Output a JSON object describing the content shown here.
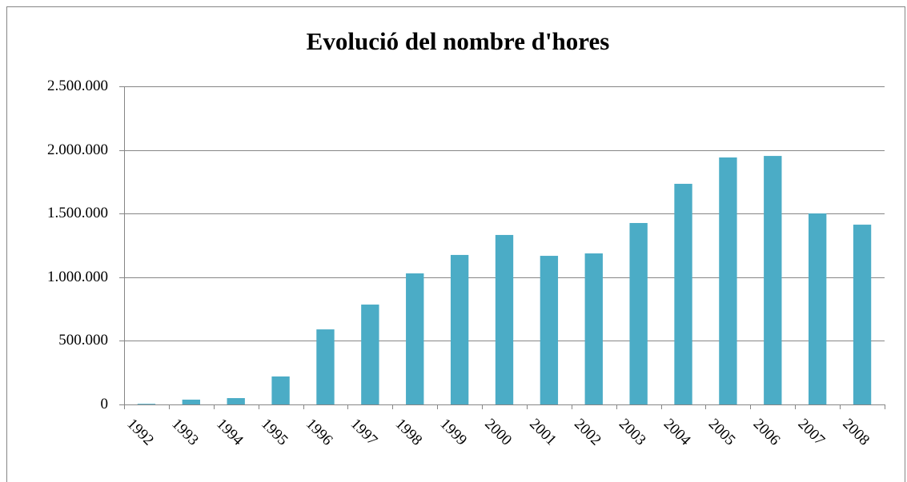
{
  "chart_data": {
    "type": "bar",
    "title": "Evolució del nombre d'hores",
    "categories": [
      "1992",
      "1993",
      "1994",
      "1995",
      "1996",
      "1997",
      "1998",
      "1999",
      "2000",
      "2001",
      "2002",
      "2003",
      "2004",
      "2005",
      "2006",
      "2007",
      "2008"
    ],
    "values": [
      5000,
      38000,
      50000,
      220000,
      590000,
      785000,
      1030000,
      1175000,
      1332000,
      1168000,
      1187000,
      1426000,
      1734000,
      1941000,
      1953000,
      1501000,
      1413000
    ],
    "color": "#4bacc6",
    "ylim": [
      0,
      2500000
    ],
    "yticks": [
      0,
      {
        "value": 500000,
        "label": "500.000"
      },
      {
        "value": 1000000,
        "label": "1.000.000"
      },
      {
        "value": 1500000,
        "label": "1.500.000"
      },
      {
        "value": 2000000,
        "label": "2.000.000"
      },
      {
        "value": 2500000,
        "label": "2.500.000"
      }
    ],
    "grid": true
  }
}
